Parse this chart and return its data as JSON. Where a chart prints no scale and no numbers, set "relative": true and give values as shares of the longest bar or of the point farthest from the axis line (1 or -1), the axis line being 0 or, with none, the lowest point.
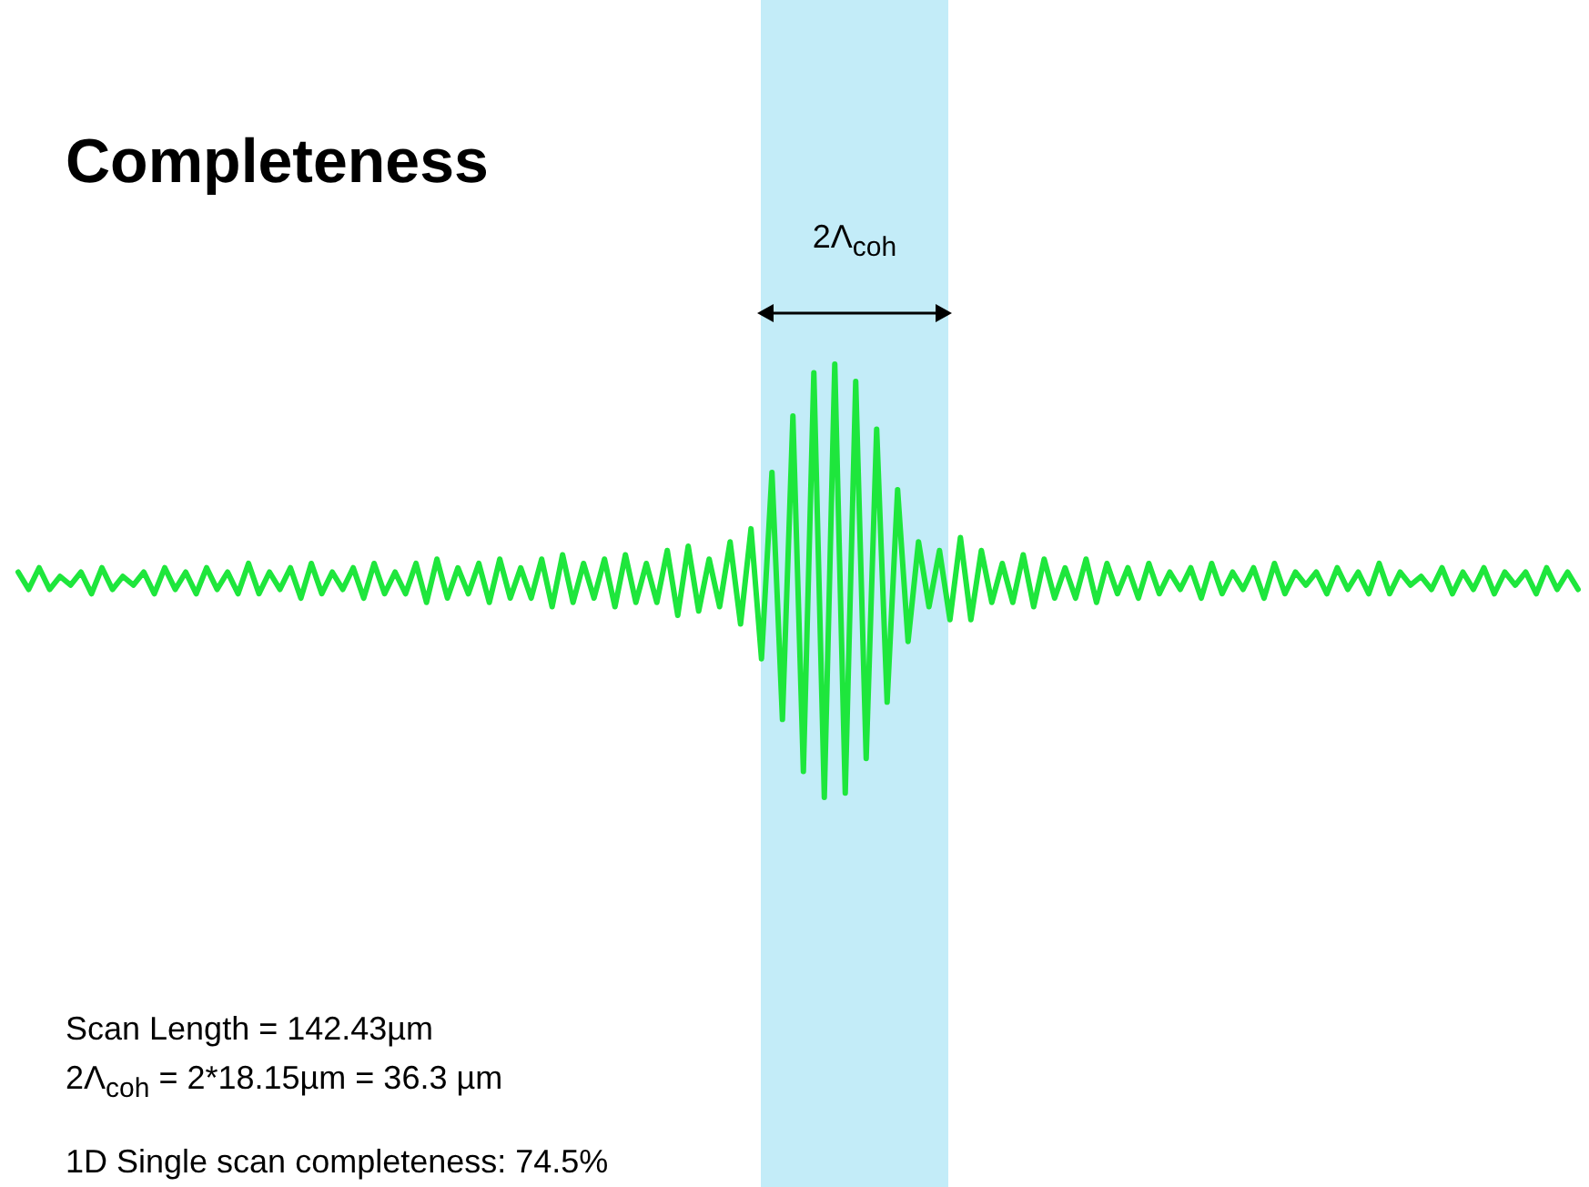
{
  "chart_data": {
    "type": "line",
    "relative": true,
    "title": "Completeness",
    "categories": [
      null,
      null,
      null,
      null,
      null,
      null,
      null,
      null,
      null,
      null,
      null,
      null,
      null,
      null,
      null,
      null,
      null,
      null,
      null,
      null,
      null,
      null,
      null,
      null,
      null,
      null,
      null,
      null,
      null,
      null,
      null,
      null,
      null,
      null,
      null,
      null,
      null,
      null,
      null,
      null,
      null,
      null,
      null,
      null,
      null,
      null,
      null,
      null,
      null,
      null,
      null,
      null,
      null,
      null,
      null,
      null,
      null,
      null,
      null,
      null,
      null,
      null,
      null,
      null,
      null,
      null,
      null,
      null,
      null,
      null,
      null,
      null,
      null,
      null,
      null,
      null,
      null,
      null,
      null,
      null,
      null,
      null,
      null,
      null,
      null,
      null,
      null,
      null,
      null,
      null,
      null,
      null,
      null,
      null,
      null,
      null,
      null,
      null,
      null,
      null,
      null,
      null,
      null,
      null,
      null,
      null,
      null,
      null,
      null,
      null,
      null,
      null,
      null,
      null,
      null,
      null,
      null,
      null,
      null,
      null,
      null,
      null,
      null,
      null,
      null,
      null,
      null,
      null,
      null,
      null,
      null,
      null,
      null,
      null,
      null,
      null,
      null,
      null,
      null,
      null,
      null,
      null,
      null,
      null,
      null,
      null,
      null,
      null,
      null,
      null
    ],
    "series": [
      {
        "color": "#1ee63c",
        "values": [
          0.52,
          0.48,
          0.53,
          0.48,
          0.51,
          0.49,
          0.52,
          0.47,
          0.53,
          0.48,
          0.51,
          0.49,
          0.52,
          0.47,
          0.53,
          0.48,
          0.52,
          0.47,
          0.53,
          0.48,
          0.52,
          0.47,
          0.54,
          0.47,
          0.52,
          0.48,
          0.53,
          0.46,
          0.54,
          0.47,
          0.52,
          0.48,
          0.53,
          0.46,
          0.54,
          0.47,
          0.52,
          0.47,
          0.54,
          0.45,
          0.55,
          0.46,
          0.53,
          0.47,
          0.54,
          0.45,
          0.55,
          0.46,
          0.53,
          0.46,
          0.55,
          0.44,
          0.56,
          0.45,
          0.54,
          0.46,
          0.55,
          0.44,
          0.56,
          0.45,
          0.54,
          0.45,
          0.57,
          0.42,
          0.58,
          0.43,
          0.55,
          0.44,
          0.59,
          0.4,
          0.62,
          0.32,
          0.75,
          0.18,
          0.88,
          0.06,
          0.98,
          0,
          1,
          0.01,
          0.96,
          0.09,
          0.85,
          0.22,
          0.71,
          0.36,
          0.59,
          0.44,
          0.57,
          0.41,
          0.6,
          0.41,
          0.57,
          0.45,
          0.54,
          0.45,
          0.56,
          0.44,
          0.55,
          0.46,
          0.53,
          0.46,
          0.55,
          0.45,
          0.54,
          0.47,
          0.53,
          0.46,
          0.54,
          0.47,
          0.52,
          0.48,
          0.53,
          0.46,
          0.54,
          0.47,
          0.52,
          0.48,
          0.53,
          0.46,
          0.54,
          0.47,
          0.52,
          0.49,
          0.52,
          0.47,
          0.53,
          0.48,
          0.52,
          0.47,
          0.54,
          0.47,
          0.52,
          0.49,
          0.51,
          0.48,
          0.53,
          0.47,
          0.52,
          0.48,
          0.53,
          0.47,
          0.52,
          0.49,
          0.52,
          0.47,
          0.53,
          0.48,
          0.52,
          0.48
        ]
      }
    ],
    "annotations": [
      "2Λ$_{coh}$",
      "Scan Length = 142.43µm",
      "2Λ$_{coh}$ = 2*18.15µm = 36.3 µm",
      "1D Single scan completeness: 74.5%"
    ]
  }
}
